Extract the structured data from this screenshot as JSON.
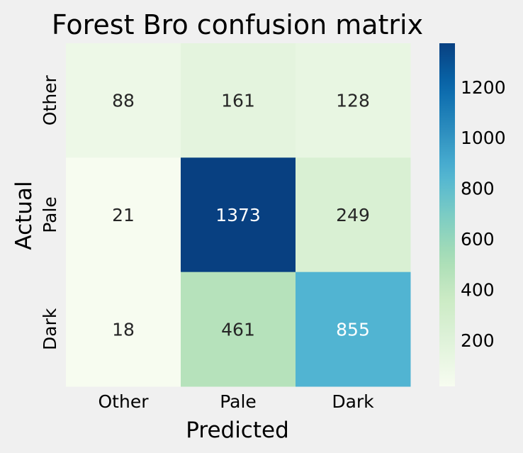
{
  "chart_data": {
    "type": "heatmap",
    "title": "Forest Bro confusion matrix",
    "xlabel": "Predicted",
    "ylabel": "Actual",
    "x_categories": [
      "Other",
      "Pale",
      "Dark"
    ],
    "y_categories": [
      "Other",
      "Pale",
      "Dark"
    ],
    "values": [
      [
        88,
        161,
        128
      ],
      [
        21,
        1373,
        249
      ],
      [
        18,
        461,
        855
      ]
    ],
    "colormap": "GnBu",
    "colorbar": {
      "min": 18,
      "max": 1373,
      "ticks": [
        200,
        400,
        600,
        800,
        1000,
        1200
      ]
    },
    "background_color": "#f0f0f0"
  }
}
